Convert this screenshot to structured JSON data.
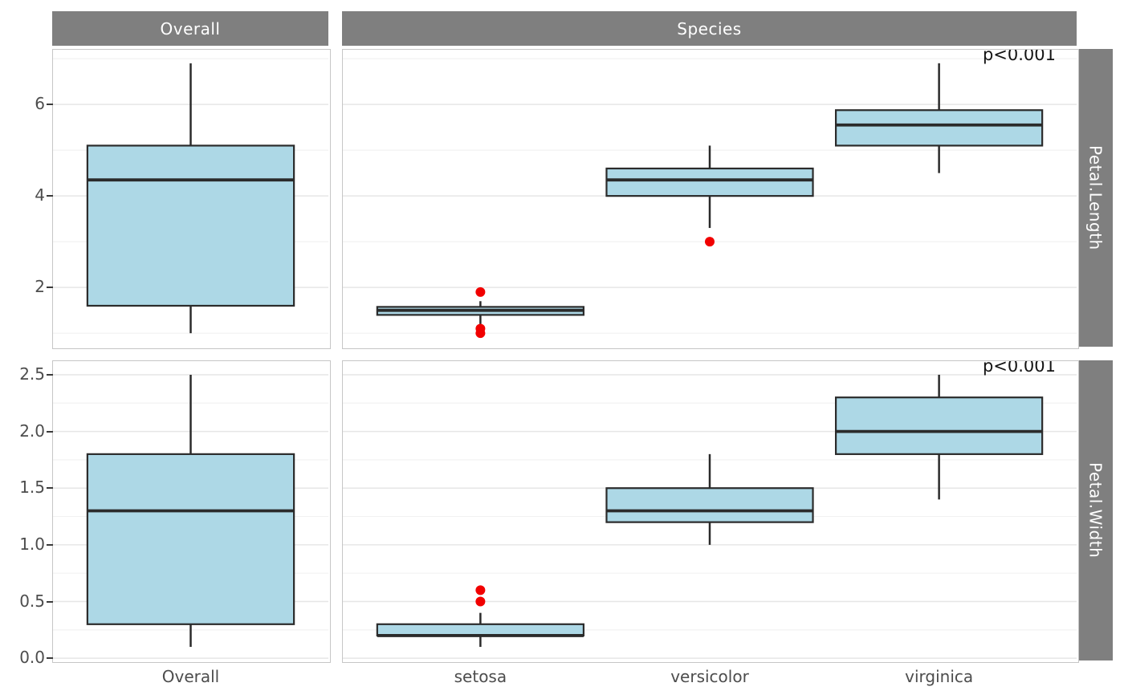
{
  "strips": {
    "overall": "Overall",
    "species": "Species",
    "row1": "Petal.Length",
    "row2": "Petal.Width"
  },
  "annotations": {
    "p_top": "p<0.001",
    "p_bottom": "p<0.001"
  },
  "colors": {
    "strip_bg": "#7f7f7f",
    "strip_text": "#ffffff",
    "panel_bg": "#ffffff",
    "panel_border": "#c6c6c6",
    "grid_major": "#e6e6e6",
    "grid_minor": "#f2f2f2",
    "box_fill": "#add8e6",
    "box_stroke": "#2b2b2b",
    "outlier": "#f10000",
    "axis_text": "#4d4d4d"
  },
  "chart_data": {
    "type": "boxplot",
    "facets": {
      "columns": [
        "Overall",
        "Species"
      ],
      "rows": [
        "Petal.Length",
        "Petal.Width"
      ]
    },
    "panels": [
      {
        "id": "pl-overall",
        "row": "r1",
        "col": "c1",
        "variable": "Petal.Length",
        "ylim": [
          0.705,
          7.195
        ],
        "grid_major": [
          2,
          4,
          6
        ],
        "grid_minor": [
          1,
          3,
          5,
          7
        ],
        "show_y_labels": true,
        "show_x_labels": false,
        "yticks": [
          {
            "v": 2,
            "label": "2"
          },
          {
            "v": 4,
            "label": "4"
          },
          {
            "v": 6,
            "label": "6"
          }
        ],
        "categories": [
          "Overall"
        ],
        "boxes": [
          {
            "category": "Overall",
            "whisker_low": 1.0,
            "q1": 1.6,
            "median": 4.35,
            "q3": 5.1,
            "whisker_high": 6.9,
            "outliers": []
          }
        ]
      },
      {
        "id": "pl-species",
        "row": "r1",
        "col": "c2",
        "variable": "Petal.Length",
        "ylim": [
          0.705,
          7.195
        ],
        "grid_major": [
          2,
          4,
          6
        ],
        "grid_minor": [
          1,
          3,
          5,
          7
        ],
        "show_y_labels": false,
        "show_x_labels": false,
        "yticks": [],
        "categories": [
          "setosa",
          "versicolor",
          "virginica"
        ],
        "boxes": [
          {
            "category": "setosa",
            "whisker_low": 1.2,
            "q1": 1.4,
            "median": 1.5,
            "q3": 1.575,
            "whisker_high": 1.7,
            "outliers": [
              1.9,
              1.1,
              1.0
            ]
          },
          {
            "category": "versicolor",
            "whisker_low": 3.3,
            "q1": 4.0,
            "median": 4.35,
            "q3": 4.6,
            "whisker_high": 5.1,
            "outliers": [
              3.0
            ]
          },
          {
            "category": "virginica",
            "whisker_low": 4.5,
            "q1": 5.1,
            "median": 5.55,
            "q3": 5.875,
            "whisker_high": 6.9,
            "outliers": []
          }
        ]
      },
      {
        "id": "pw-overall",
        "row": "r2",
        "col": "c1",
        "variable": "Petal.Width",
        "ylim": [
          -0.02,
          2.62
        ],
        "grid_major": [
          0,
          0.5,
          1.0,
          1.5,
          2.0,
          2.5
        ],
        "grid_minor": [
          0.25,
          0.75,
          1.25,
          1.75,
          2.25
        ],
        "show_y_labels": true,
        "show_x_labels": true,
        "yticks": [
          {
            "v": 0.0,
            "label": "0.0"
          },
          {
            "v": 0.5,
            "label": "0.5"
          },
          {
            "v": 1.0,
            "label": "1.0"
          },
          {
            "v": 1.5,
            "label": "1.5"
          },
          {
            "v": 2.0,
            "label": "2.0"
          },
          {
            "v": 2.5,
            "label": "2.5"
          }
        ],
        "categories": [
          "Overall"
        ],
        "boxes": [
          {
            "category": "Overall",
            "whisker_low": 0.1,
            "q1": 0.3,
            "median": 1.3,
            "q3": 1.8,
            "whisker_high": 2.5,
            "outliers": []
          }
        ]
      },
      {
        "id": "pw-species",
        "row": "r2",
        "col": "c2",
        "variable": "Petal.Width",
        "ylim": [
          -0.02,
          2.62
        ],
        "grid_major": [
          0,
          0.5,
          1.0,
          1.5,
          2.0,
          2.5
        ],
        "grid_minor": [
          0.25,
          0.75,
          1.25,
          1.75,
          2.25
        ],
        "show_y_labels": false,
        "show_x_labels": true,
        "yticks": [],
        "categories": [
          "setosa",
          "versicolor",
          "virginica"
        ],
        "boxes": [
          {
            "category": "setosa",
            "whisker_low": 0.1,
            "q1": 0.2,
            "median": 0.2,
            "q3": 0.3,
            "whisker_high": 0.4,
            "outliers": [
              0.6,
              0.5
            ]
          },
          {
            "category": "versicolor",
            "whisker_low": 1.0,
            "q1": 1.2,
            "median": 1.3,
            "q3": 1.5,
            "whisker_high": 1.8,
            "outliers": []
          },
          {
            "category": "virginica",
            "whisker_low": 1.4,
            "q1": 1.8,
            "median": 2.0,
            "q3": 2.3,
            "whisker_high": 2.5,
            "outliers": []
          }
        ]
      }
    ]
  }
}
